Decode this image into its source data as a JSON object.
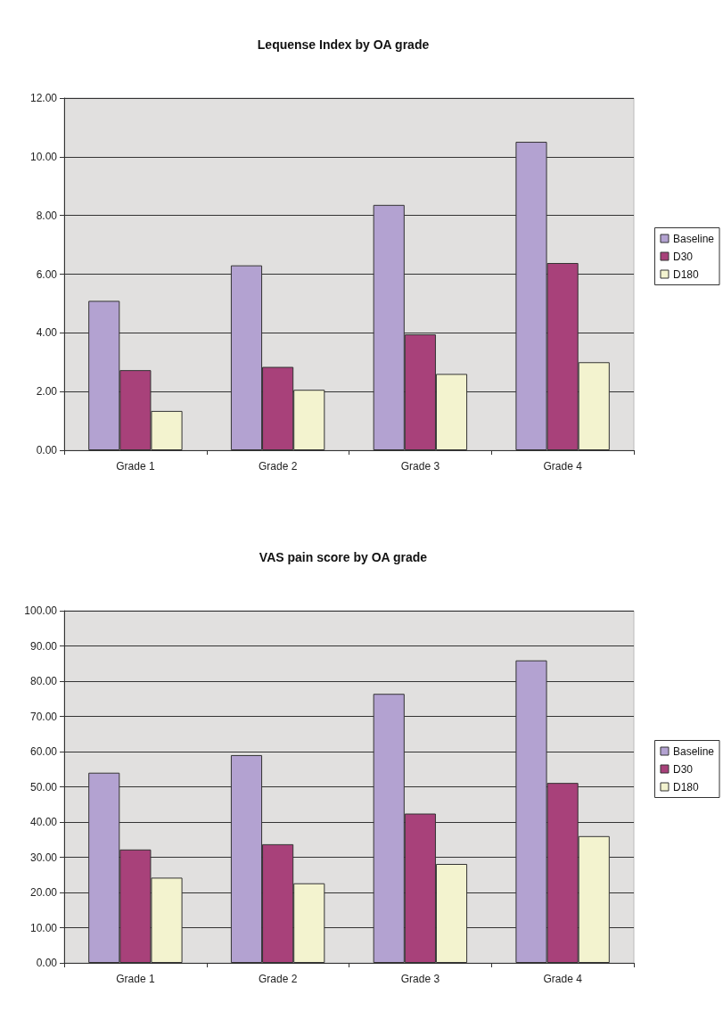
{
  "chart_data": [
    {
      "type": "bar",
      "title": "Lequense Index by OA grade",
      "categories": [
        "Grade 1",
        "Grade 2",
        "Grade 3",
        "Grade 4"
      ],
      "series": [
        {
          "name": "Baseline",
          "color": "#b3a2d1",
          "values": [
            5.09,
            6.3,
            8.36,
            10.51
          ]
        },
        {
          "name": "D30",
          "color": "#a8417a",
          "values": [
            2.73,
            2.84,
            3.95,
            6.38
          ]
        },
        {
          "name": "D180",
          "color": "#f3f3cf",
          "values": [
            1.34,
            2.06,
            2.6,
            3.0
          ]
        }
      ],
      "ylim": [
        0,
        12
      ],
      "yticks": [
        {
          "value": 0,
          "label": "0.00"
        },
        {
          "value": 2,
          "label": "2.00"
        },
        {
          "value": 4,
          "label": "4.00"
        },
        {
          "value": 6,
          "label": "6.00"
        },
        {
          "value": 8,
          "label": "8.00"
        },
        {
          "value": 10,
          "label": "10.00"
        },
        {
          "value": 12,
          "label": "12.00"
        }
      ],
      "grid": "y",
      "legend": "right"
    },
    {
      "type": "bar",
      "title": "VAS pain score by OA grade",
      "categories": [
        "Grade 1",
        "Grade 2",
        "Grade 3",
        "Grade 4"
      ],
      "series": [
        {
          "name": "Baseline",
          "color": "#b3a2d1",
          "values": [
            54.0,
            59.0,
            76.4,
            85.9
          ]
        },
        {
          "name": "D30",
          "color": "#a8417a",
          "values": [
            32.2,
            33.7,
            42.4,
            51.1
          ]
        },
        {
          "name": "D180",
          "color": "#f3f3cf",
          "values": [
            24.2,
            22.6,
            28.1,
            36.0
          ]
        }
      ],
      "ylim": [
        0,
        100
      ],
      "yticks": [
        {
          "value": 0,
          "label": "0.00"
        },
        {
          "value": 10,
          "label": "10.00"
        },
        {
          "value": 20,
          "label": "20.00"
        },
        {
          "value": 30,
          "label": "30.00"
        },
        {
          "value": 40,
          "label": "40.00"
        },
        {
          "value": 50,
          "label": "50.00"
        },
        {
          "value": 60,
          "label": "60.00"
        },
        {
          "value": 70,
          "label": "70.00"
        },
        {
          "value": 80,
          "label": "80.00"
        },
        {
          "value": 90,
          "label": "90.00"
        },
        {
          "value": 100,
          "label": "100.00"
        }
      ],
      "grid": "y",
      "legend": "right"
    }
  ]
}
